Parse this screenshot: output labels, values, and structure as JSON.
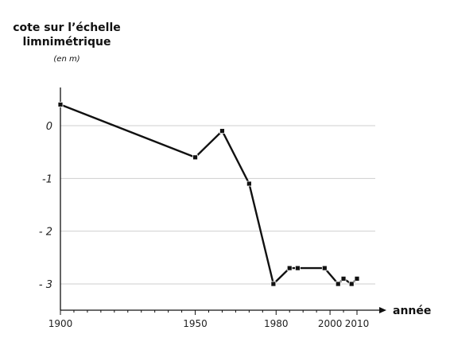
{
  "chart_data": {
    "type": "line",
    "ylabel_lines": [
      "cote sur l’échelle",
      "limnimétrique"
    ],
    "ylabel_unit": "(en m)",
    "xlabel": "année",
    "x": [
      1900,
      1950,
      1960,
      1970,
      1979,
      1985,
      1988,
      1998,
      2003,
      2005,
      2008,
      2010
    ],
    "series": [
      {
        "values": [
          0.4,
          -0.6,
          -0.1,
          -1.1,
          -3.0,
          -2.7,
          -2.7,
          -2.7,
          -3.0,
          -2.9,
          -3.0,
          -2.9
        ]
      }
    ],
    "y_ticks": [
      0,
      -1,
      -2,
      -3
    ],
    "y_tick_labels": [
      "0",
      "-1",
      "- 2",
      "- 3"
    ],
    "x_ticks": [
      1900,
      1950,
      1980,
      2000,
      2010
    ],
    "x_tick_labels": [
      "1900",
      "1950",
      "1980",
      "2000",
      "2010"
    ],
    "xlim": [
      1900,
      2012
    ],
    "ylim": [
      -3.5,
      0.9
    ],
    "grid": true
  }
}
